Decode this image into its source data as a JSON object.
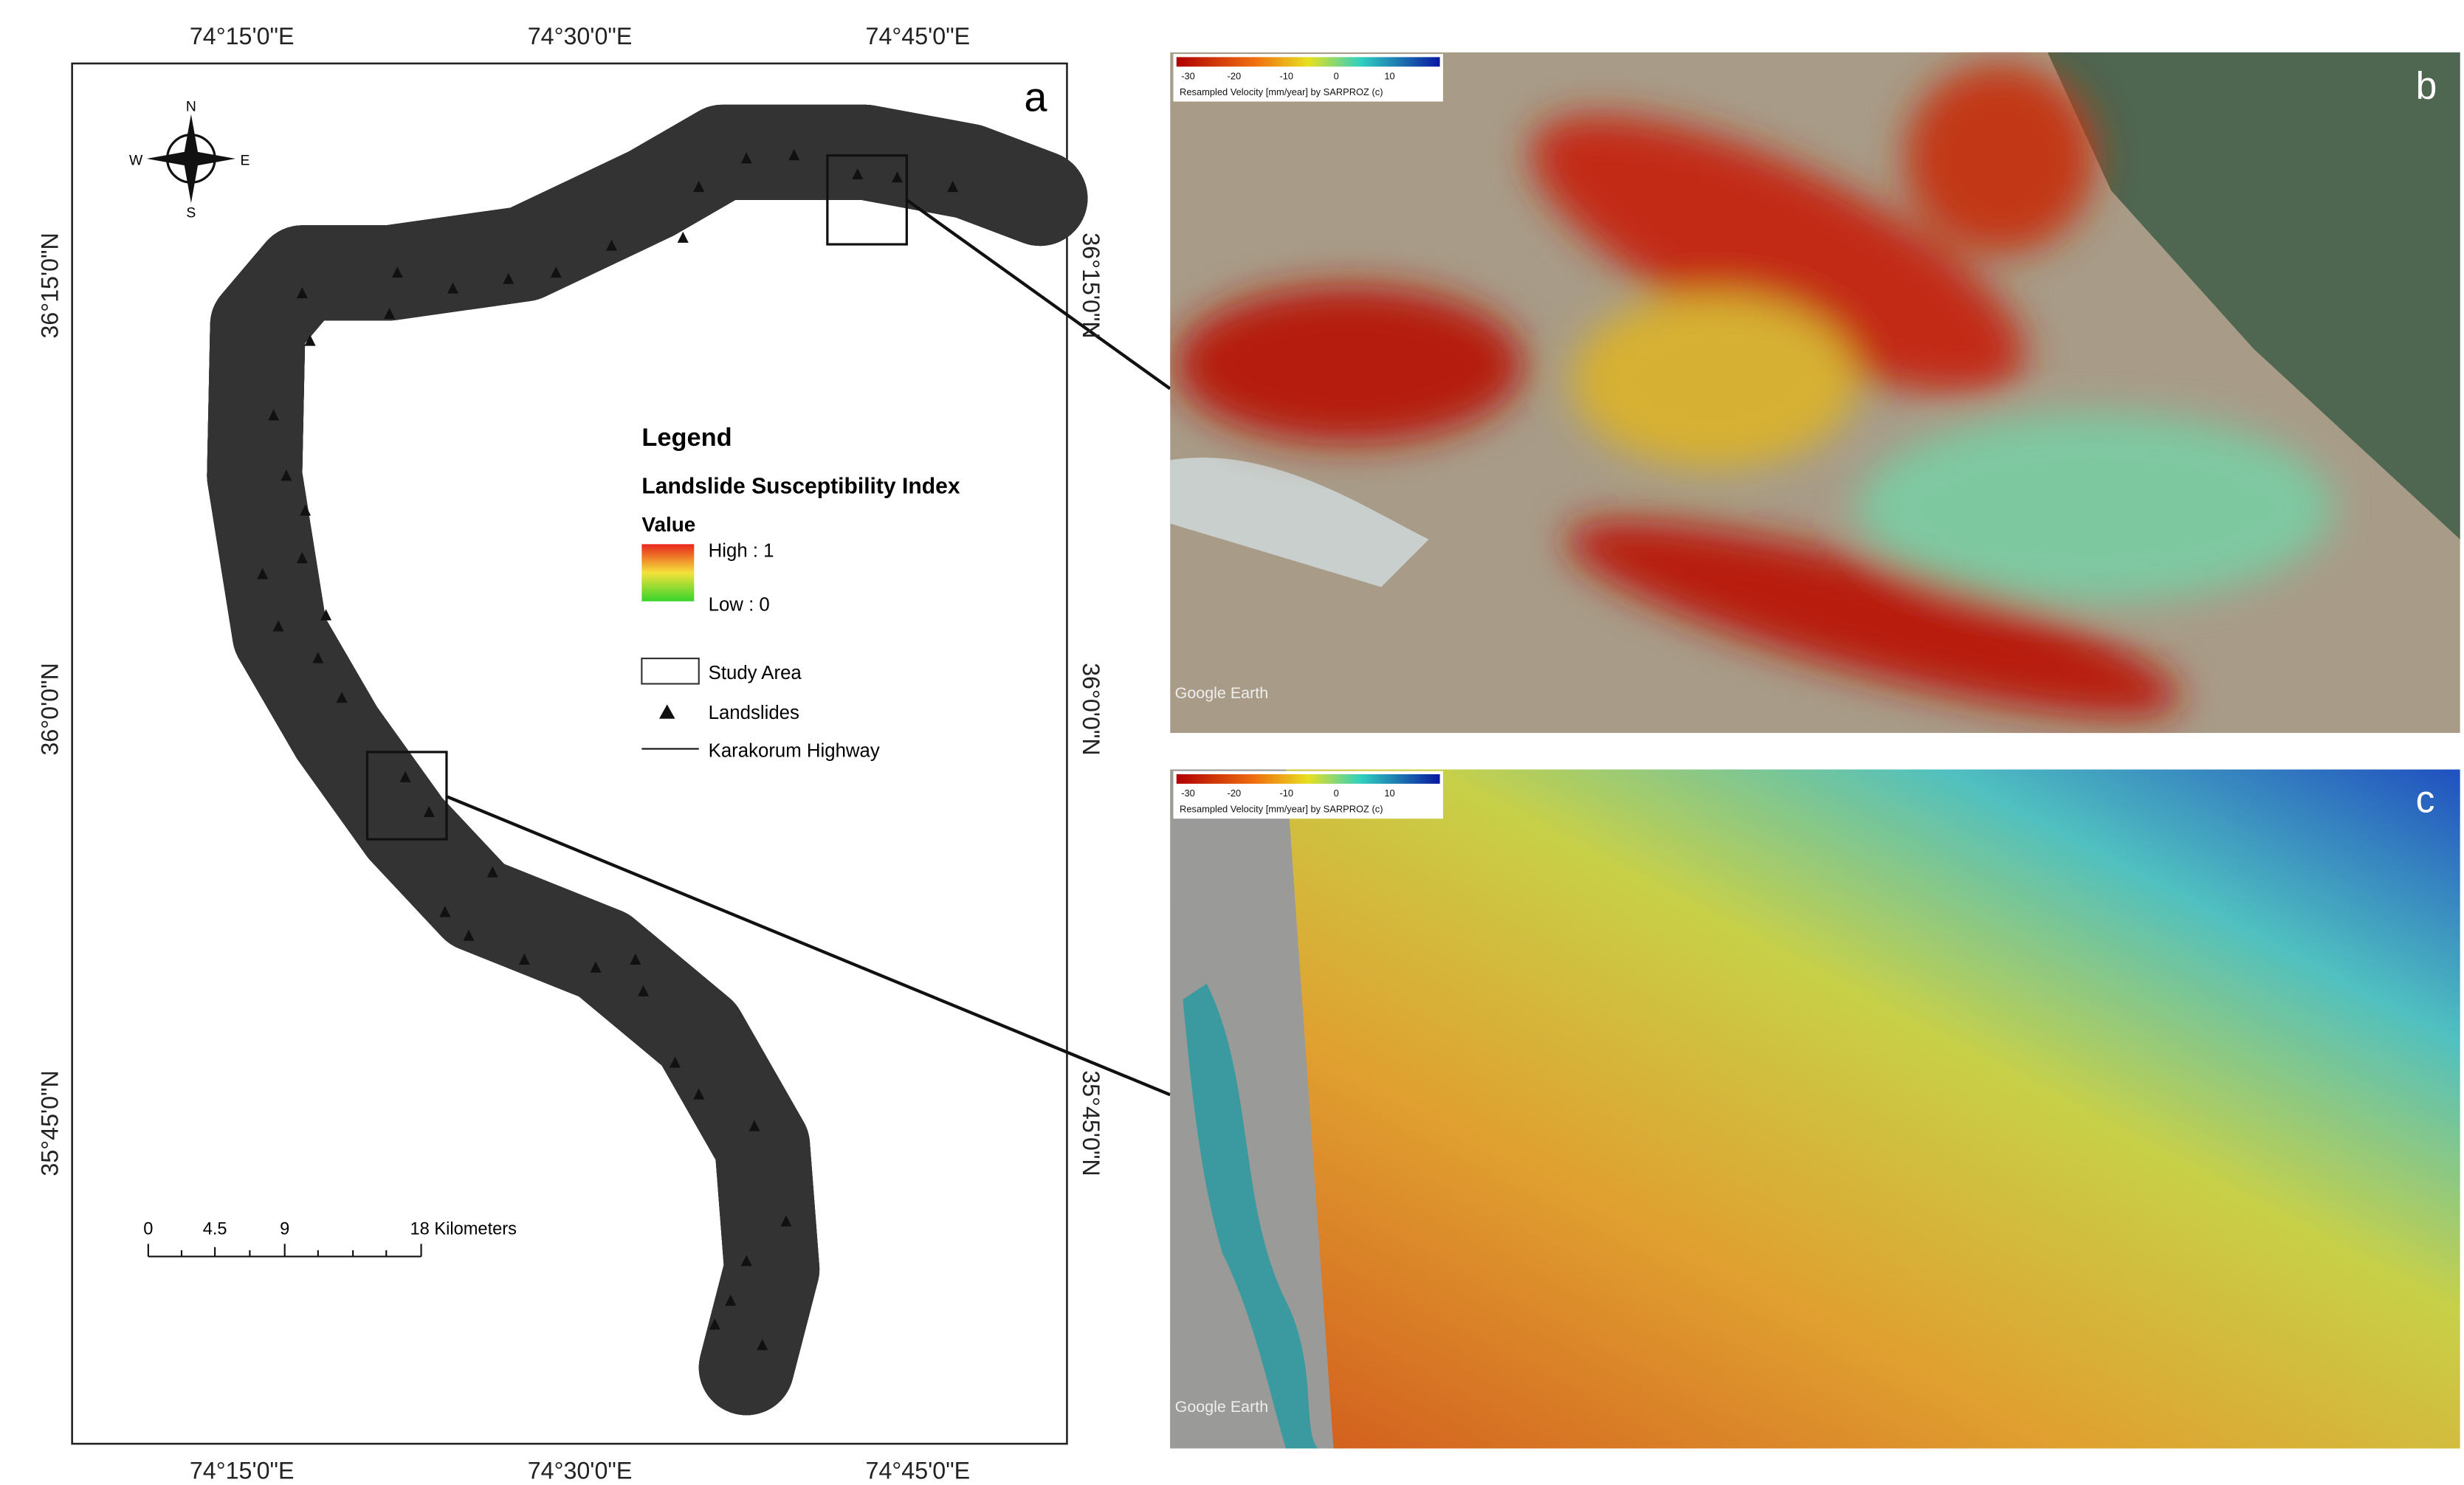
{
  "map_a": {
    "label": "a",
    "lon_labels_top": [
      "74°15'0\"E",
      "74°30'0\"E",
      "74°45'0\"E"
    ],
    "lon_labels_bottom": [
      "74°15'0\"E",
      "74°30'0\"E",
      "74°45'0\"E"
    ],
    "lat_labels_left": [
      "36°15'0\"N",
      "36°0'0\"N",
      "35°45'0\"N"
    ],
    "lat_labels_right": [
      "36°15'0\"N",
      "36°0'0\"N",
      "35°45'0\"N"
    ],
    "compass": {
      "north": "N",
      "south": "S",
      "east": "E",
      "west": "W"
    },
    "legend": {
      "title": "Legend",
      "subtitle": "Landslide Susceptibility Index",
      "value_heading": "Value",
      "high": "High : 1",
      "low": "Low : 0",
      "items": [
        "Study Area",
        "Landslides",
        "Karakorum Highway"
      ]
    },
    "scale_bar": [
      "0",
      "4.5",
      "9",
      "18 Kilometers"
    ]
  },
  "map_b": {
    "label": "b",
    "colorbar_ticks": [
      "-30",
      "-20",
      "-10",
      "0",
      "10"
    ],
    "colorbar_title": "Resampled Velocity [mm/year] by SARPROZ (c)",
    "watermark": "Google Earth"
  },
  "map_c": {
    "label": "c",
    "colorbar_ticks": [
      "-30",
      "-20",
      "-10",
      "0",
      "10"
    ],
    "colorbar_title": "Resampled Velocity [mm/year] by SARPROZ (c)",
    "watermark": "Google Earth"
  }
}
